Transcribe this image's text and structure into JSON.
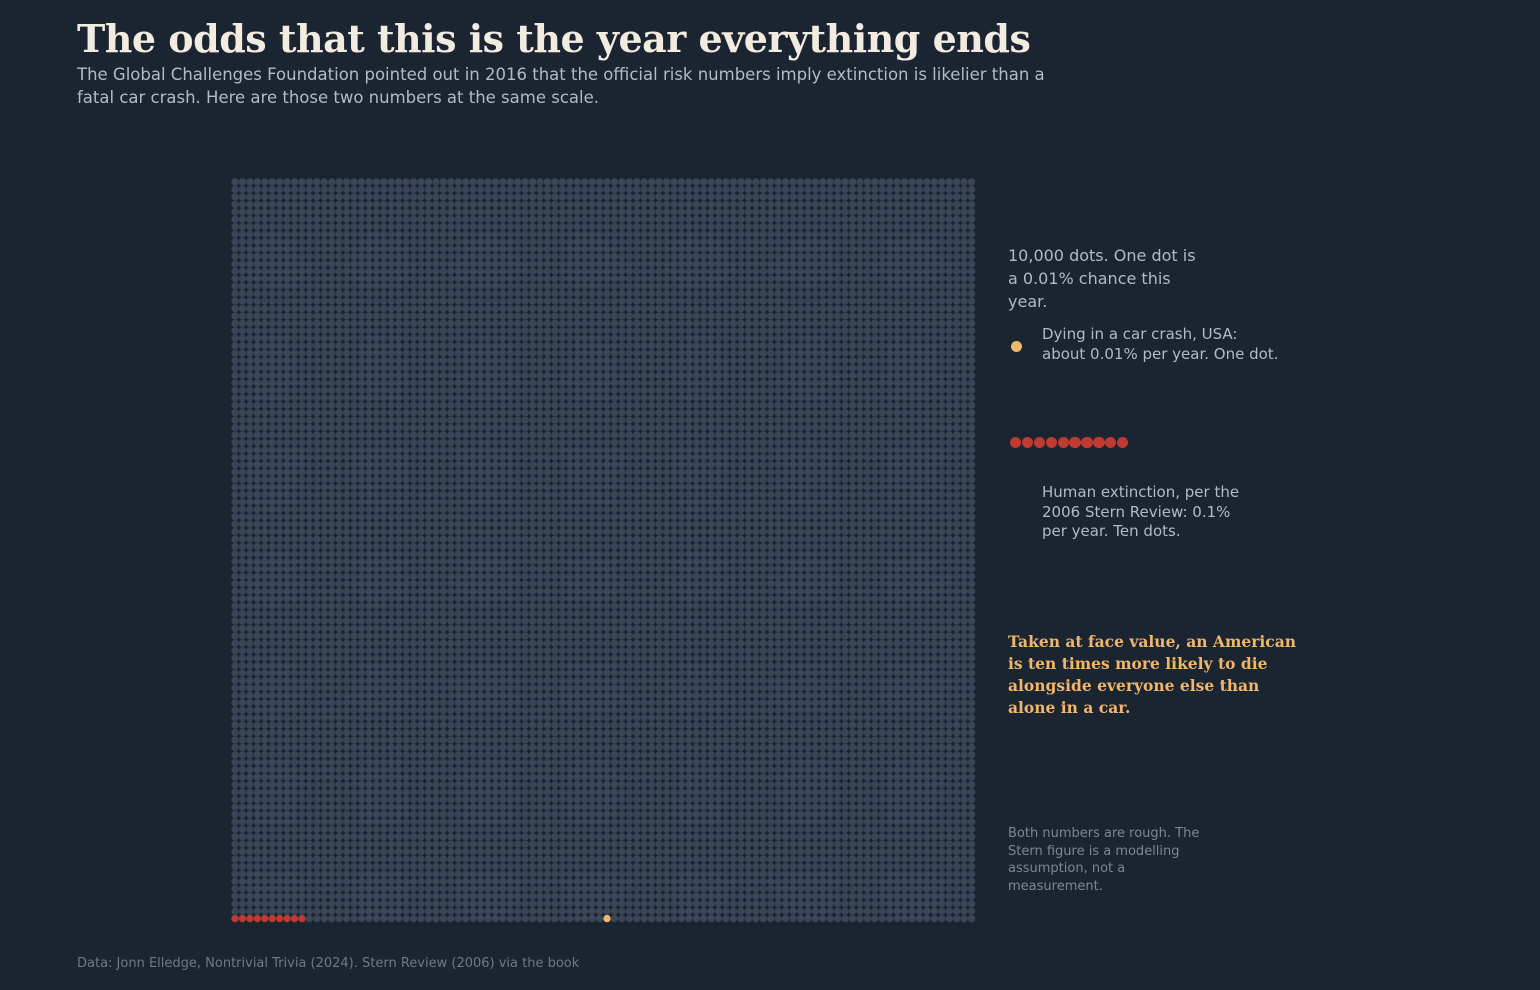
{
  "header": {
    "title": "The odds that this is the year everything ends",
    "subtitle": "The Global Challenges Foundation pointed out in 2016 that the official risk numbers imply extinction is likelier than a fatal car crash. Here are those two numbers at the same scale."
  },
  "annotations": {
    "scale_note": "10,000 dots. One dot is a 0.01% chance this year.",
    "car_label": "Dying in a car crash, USA: about 0.01% per year. One dot.",
    "extinction_label": "Human extinction, per the 2006 Stern Review: 0.1% per year. Ten dots.",
    "conclusion": "Taken at face value, an American is ten times more likely to die alongside everyone else than alone in a car.",
    "caveat": "Both numbers are rough. The Stern figure is a modelling assumption, not a measurement."
  },
  "footer": {
    "source": "Data: Jonn Elledge, Nontrivial Trivia (2024). Stern Review (2006) via the book"
  },
  "colors": {
    "background": "#1b2431",
    "grid_dot": "#3a4658",
    "car": "#f0b669",
    "extinction": "#bf3a30"
  },
  "chart_data": {
    "type": "waffle",
    "total_dots": 10000,
    "rows": 100,
    "cols": 100,
    "dot_value_percent": 0.01,
    "series": [
      {
        "name": "Dying in a car crash, USA",
        "percent_per_year": 0.01,
        "dots": 1,
        "color": "#f0b669",
        "bottom_row_index": 50
      },
      {
        "name": "Human extinction, per the 2006 Stern Review",
        "percent_per_year": 0.1,
        "dots": 10,
        "color": "#bf3a30",
        "bottom_row_indices": [
          0,
          1,
          2,
          3,
          4,
          5,
          6,
          7,
          8,
          9
        ]
      }
    ]
  }
}
